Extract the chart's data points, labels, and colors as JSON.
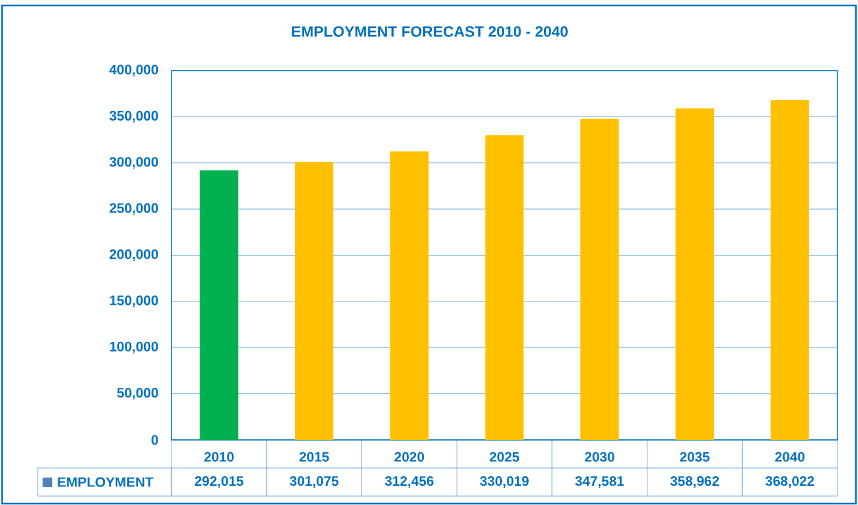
{
  "chart_data": {
    "type": "bar",
    "title": "EMPLOYMENT FORECAST 2010 - 2040",
    "categories": [
      "2010",
      "2015",
      "2020",
      "2025",
      "2030",
      "2035",
      "2040"
    ],
    "series": [
      {
        "name": "EMPLOYMENT",
        "color": "#4f81bd",
        "colors": [
          "#00b050",
          "#ffc000",
          "#ffc000",
          "#ffc000",
          "#ffc000",
          "#ffc000",
          "#ffc000"
        ],
        "values": [
          292015,
          301075,
          312456,
          330019,
          347581,
          358962,
          368022
        ],
        "value_labels": [
          "292,015",
          "301,075",
          "312,456",
          "330,019",
          "347,581",
          "358,962",
          "368,022"
        ]
      }
    ],
    "ylim": [
      0,
      400000
    ],
    "yticks": [
      0,
      {
        "value": 50000,
        "label": "50,000"
      },
      {
        "value": 100000,
        "label": "100,000"
      },
      {
        "value": 150000,
        "label": "150,000"
      },
      {
        "value": 200000,
        "label": "200,000"
      },
      {
        "value": 250000,
        "label": "250,000"
      },
      {
        "value": 300000,
        "label": "300,000"
      },
      {
        "value": 350000,
        "label": "350,000"
      },
      {
        "value": 400000,
        "label": "400,000"
      }
    ],
    "grid": "y",
    "legend": "bottom",
    "data_labels": true
  }
}
